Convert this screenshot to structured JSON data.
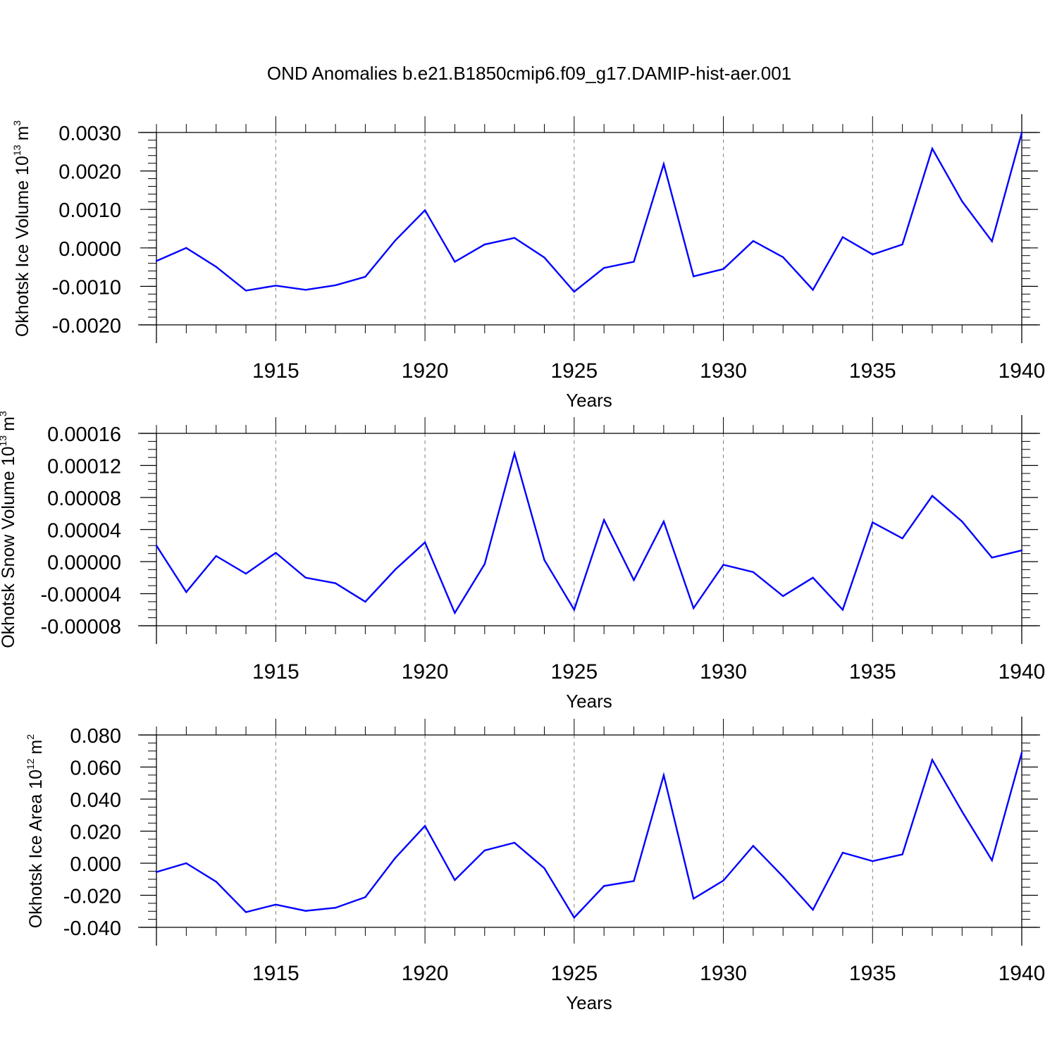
{
  "title": "OND Anomalies b.e21.B1850cmip6.f09_g17.DAMIP-hist-aer.001",
  "colors": {
    "line": "#0000ff",
    "axis": "#000000",
    "grid": "#808080"
  },
  "chart_data": [
    {
      "type": "line",
      "ylabel": "Okhotsk Ice Volume",
      "unit_base": "10",
      "unit_exp": "13",
      "unit_sym": "m",
      "unit_pow": "3",
      "xlabel": "Years",
      "xlim": [
        1911,
        1940
      ],
      "ylim": [
        -0.002,
        0.003
      ],
      "yticks": [
        -0.002,
        -0.001,
        0.0,
        0.001,
        0.002,
        0.003
      ],
      "ytick_labels": [
        "-0.0020",
        "-0.0010",
        "0.0000",
        "0.0010",
        "0.0020",
        "0.0030"
      ],
      "yminor_step": 0.0002,
      "xticks": [
        1915,
        1920,
        1925,
        1930,
        1935,
        1940
      ],
      "xtick_labels": [
        "1915",
        "1920",
        "1925",
        "1930",
        "1935",
        "1940"
      ],
      "x": [
        1911,
        1912,
        1913,
        1914,
        1915,
        1916,
        1917,
        1918,
        1919,
        1920,
        1921,
        1922,
        1923,
        1924,
        1925,
        1926,
        1927,
        1928,
        1929,
        1930,
        1931,
        1932,
        1933,
        1934,
        1935,
        1936,
        1937,
        1938,
        1939,
        1940
      ],
      "values": [
        -0.00034,
        0.0,
        -0.00049,
        -0.00111,
        -0.00098,
        -0.00109,
        -0.00097,
        -0.00075,
        0.00019,
        0.00098,
        -0.00036,
        9e-05,
        0.00026,
        -0.00025,
        -0.00114,
        -0.00052,
        -0.00036,
        0.00218,
        -0.00074,
        -0.00055,
        0.00018,
        -0.00024,
        -0.00109,
        0.00028,
        -0.00017,
        9e-05,
        0.00258,
        0.00121,
        0.00017,
        0.00299
      ]
    },
    {
      "type": "line",
      "ylabel": "Okhotsk Snow Volume",
      "unit_base": "10",
      "unit_exp": "13",
      "unit_sym": "m",
      "unit_pow": "3",
      "xlabel": "Years",
      "xlim": [
        1911,
        1940
      ],
      "ylim": [
        -8e-05,
        0.00016
      ],
      "yticks": [
        -8e-05,
        -4e-05,
        0.0,
        4e-05,
        8e-05,
        0.00012,
        0.00016
      ],
      "ytick_labels": [
        "-0.00008",
        "-0.00004",
        "0.00000",
        "0.00004",
        "0.00008",
        "0.00012",
        "0.00016"
      ],
      "yminor_step": 1e-05,
      "xticks": [
        1915,
        1920,
        1925,
        1930,
        1935,
        1940
      ],
      "xtick_labels": [
        "1915",
        "1920",
        "1925",
        "1930",
        "1935",
        "1940"
      ],
      "x": [
        1911,
        1912,
        1913,
        1914,
        1915,
        1916,
        1917,
        1918,
        1919,
        1920,
        1921,
        1922,
        1923,
        1924,
        1925,
        1926,
        1927,
        1928,
        1929,
        1930,
        1931,
        1932,
        1933,
        1934,
        1935,
        1936,
        1937,
        1938,
        1939,
        1940
      ],
      "values": [
        2e-05,
        -3.8e-05,
        7e-06,
        -1.5e-05,
        1.1e-05,
        -2e-05,
        -2.7e-05,
        -5e-05,
        -1e-05,
        2.4e-05,
        -6.4e-05,
        -3e-06,
        0.000135,
        2e-06,
        -6e-05,
        5.2e-05,
        -2.3e-05,
        5e-05,
        -5.8e-05,
        -4e-06,
        -1.3e-05,
        -4.3e-05,
        -2e-05,
        -6e-05,
        4.9e-05,
        2.9e-05,
        8.2e-05,
        5e-05,
        5e-06,
        1.4e-05
      ]
    },
    {
      "type": "line",
      "ylabel": "Okhotsk Ice Area",
      "unit_base": "10",
      "unit_exp": "12",
      "unit_sym": "m",
      "unit_pow": "2",
      "xlabel": "Years",
      "xlim": [
        1911,
        1940
      ],
      "ylim": [
        -0.04,
        0.08
      ],
      "yticks": [
        -0.04,
        -0.02,
        0.0,
        0.02,
        0.04,
        0.06,
        0.08
      ],
      "ytick_labels": [
        "-0.040",
        "-0.020",
        "0.000",
        "0.020",
        "0.040",
        "0.060",
        "0.080"
      ],
      "yminor_step": 0.005,
      "xticks": [
        1915,
        1920,
        1925,
        1930,
        1935,
        1940
      ],
      "xtick_labels": [
        "1915",
        "1920",
        "1925",
        "1930",
        "1935",
        "1940"
      ],
      "x": [
        1911,
        1912,
        1913,
        1914,
        1915,
        1916,
        1917,
        1918,
        1919,
        1920,
        1921,
        1922,
        1923,
        1924,
        1925,
        1926,
        1927,
        1928,
        1929,
        1930,
        1931,
        1932,
        1933,
        1934,
        1935,
        1936,
        1937,
        1938,
        1939,
        1940
      ],
      "values": [
        -0.0055,
        0.0,
        -0.0115,
        -0.0305,
        -0.0258,
        -0.0297,
        -0.0278,
        -0.0212,
        0.0032,
        0.0233,
        -0.0105,
        0.008,
        0.0128,
        -0.0031,
        -0.0339,
        -0.0142,
        -0.0111,
        0.0549,
        -0.0221,
        -0.0108,
        0.0108,
        -0.0083,
        -0.029,
        0.0066,
        0.0013,
        0.0055,
        0.0645,
        0.0322,
        0.0018,
        0.0689
      ]
    }
  ]
}
